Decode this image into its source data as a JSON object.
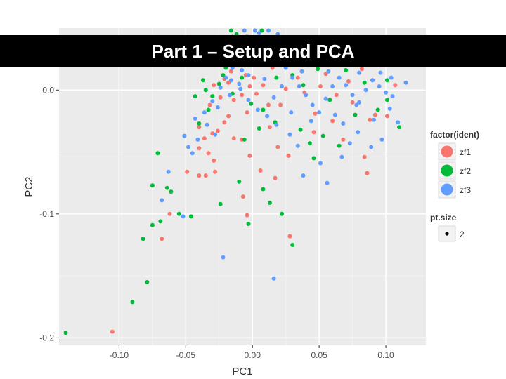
{
  "slide": {
    "title": "Part 1 – Setup and PCA"
  },
  "chart_data": {
    "type": "scatter",
    "xlabel": "PC1",
    "ylabel": "PC2",
    "xlim": [
      -0.145,
      0.13
    ],
    "ylim": [
      -0.206,
      0.05
    ],
    "x_ticks": [
      -0.1,
      -0.05,
      0.0,
      0.05,
      0.1
    ],
    "x_tick_labels": [
      "-0.10",
      "-0.05",
      "0.00",
      "0.05",
      "0.10"
    ],
    "y_ticks": [
      -0.2,
      -0.1,
      0.0
    ],
    "y_tick_labels": [
      "-0.2",
      "-0.1",
      "0.0"
    ],
    "grid": true,
    "legend": {
      "title": "factor(ident)",
      "placement": "right",
      "size_title": "pt.size",
      "size_label": "2"
    },
    "series": [
      {
        "name": "zf1",
        "color": "#F8766D",
        "points": [
          [
            -0.105,
            -0.195
          ],
          [
            -0.068,
            -0.12
          ],
          [
            -0.062,
            -0.1
          ],
          [
            -0.049,
            -0.066
          ],
          [
            -0.04,
            -0.069
          ],
          [
            -0.035,
            -0.069
          ],
          [
            -0.028,
            -0.066
          ],
          [
            -0.029,
            -0.057
          ],
          [
            -0.033,
            -0.051
          ],
          [
            -0.04,
            -0.047
          ],
          [
            -0.036,
            -0.039
          ],
          [
            -0.03,
            -0.035
          ],
          [
            -0.026,
            -0.033
          ],
          [
            -0.021,
            -0.026
          ],
          [
            -0.018,
            -0.021
          ],
          [
            -0.014,
            -0.039
          ],
          [
            -0.008,
            -0.04
          ],
          [
            -0.002,
            -0.053
          ],
          [
            0.006,
            -0.065
          ],
          [
            -0.007,
            -0.086
          ],
          [
            -0.004,
            -0.101
          ],
          [
            0.017,
            -0.071
          ],
          [
            0.027,
            -0.053
          ],
          [
            0.019,
            -0.046
          ],
          [
            0.013,
            -0.03
          ],
          [
            0.028,
            -0.118
          ],
          [
            0.046,
            -0.034
          ],
          [
            0.068,
            -0.04
          ],
          [
            0.084,
            -0.054
          ],
          [
            0.086,
            -0.067
          ],
          [
            0.088,
            -0.024
          ],
          [
            0.092,
            -0.02
          ],
          [
            0.101,
            -0.021
          ],
          [
            0.107,
            0.004
          ],
          [
            0.09,
            0.008
          ],
          [
            0.082,
            0.017
          ],
          [
            0.072,
            0.007
          ],
          [
            0.063,
            -0.004
          ],
          [
            0.055,
            0.013
          ],
          [
            0.047,
            -0.019
          ],
          [
            0.034,
            0.01
          ],
          [
            0.025,
            0.001
          ],
          [
            0.012,
            -0.012
          ],
          [
            0.003,
            -0.003
          ],
          [
            -0.005,
            0.012
          ],
          [
            -0.012,
            0.02
          ],
          [
            -0.018,
            0.006
          ],
          [
            -0.024,
            -0.006
          ],
          [
            -0.032,
            -0.012
          ],
          [
            -0.04,
            -0.03
          ],
          [
            -0.019,
            0.03
          ],
          [
            -0.01,
            0.038
          ],
          [
            -0.003,
            0.022
          ],
          [
            0.006,
            0.033
          ],
          [
            -0.026,
            0.021
          ],
          [
            -0.014,
            -0.008
          ],
          [
            -0.008,
            -0.004
          ],
          [
            0.001,
            0.01
          ],
          [
            0.008,
            0.004
          ],
          [
            -0.021,
            0.009
          ],
          [
            -0.016,
            0.015
          ],
          [
            -0.029,
            0.004
          ],
          [
            -0.004,
            -0.018
          ],
          [
            0.015,
            0.018
          ],
          [
            0.021,
            -0.012
          ],
          [
            0.039,
            -0.002
          ],
          [
            0.051,
            0.003
          ],
          [
            0.06,
            -0.025
          ],
          [
            0.075,
            -0.01
          ],
          [
            -0.002,
            0.003
          ]
        ]
      },
      {
        "name": "zf2",
        "color": "#00BA38",
        "points": [
          [
            -0.14,
            -0.196
          ],
          [
            -0.09,
            -0.171
          ],
          [
            -0.079,
            -0.155
          ],
          [
            -0.082,
            -0.12
          ],
          [
            -0.075,
            -0.109
          ],
          [
            -0.069,
            -0.106
          ],
          [
            -0.075,
            -0.077
          ],
          [
            -0.071,
            -0.051
          ],
          [
            -0.064,
            -0.079
          ],
          [
            -0.061,
            -0.082
          ],
          [
            -0.055,
            -0.1
          ],
          [
            -0.046,
            -0.102
          ],
          [
            -0.024,
            -0.092
          ],
          [
            -0.003,
            -0.108
          ],
          [
            -0.01,
            -0.074
          ],
          [
            0.008,
            -0.08
          ],
          [
            0.013,
            -0.091
          ],
          [
            0.03,
            -0.125
          ],
          [
            0.022,
            -0.1
          ],
          [
            -0.04,
            -0.027
          ],
          [
            -0.033,
            -0.016
          ],
          [
            -0.03,
            -0.005
          ],
          [
            -0.025,
            0.005
          ],
          [
            -0.02,
            0.018
          ],
          [
            -0.028,
            0.026
          ],
          [
            -0.018,
            0.039
          ],
          [
            -0.014,
            0.03
          ],
          [
            -0.008,
            0.022
          ],
          [
            -0.003,
            0.036
          ],
          [
            0.004,
            0.027
          ],
          [
            0.011,
            0.02
          ],
          [
            0.02,
            0.029
          ],
          [
            0.03,
            0.012
          ],
          [
            0.038,
            0.004
          ],
          [
            0.049,
            0.017
          ],
          [
            0.058,
            -0.008
          ],
          [
            0.053,
            -0.037
          ],
          [
            0.065,
            -0.045
          ],
          [
            0.077,
            -0.02
          ],
          [
            0.094,
            -0.016
          ],
          [
            0.101,
            -0.008
          ],
          [
            0.11,
            -0.03
          ],
          [
            0.101,
            0.008
          ],
          [
            0.084,
            0.006
          ],
          [
            0.07,
            0.016
          ],
          [
            0.059,
            0.032
          ],
          [
            0.043,
            -0.043
          ],
          [
            0.046,
            -0.055
          ],
          [
            0.036,
            -0.032
          ],
          [
            0.017,
            -0.026
          ],
          [
            0.008,
            -0.016
          ],
          [
            -0.001,
            -0.011
          ],
          [
            -0.008,
            0.01
          ],
          [
            -0.015,
            -0.003
          ],
          [
            -0.022,
            0.012
          ],
          [
            -0.03,
            0.02
          ],
          [
            -0.037,
            0.008
          ],
          [
            -0.043,
            -0.005
          ],
          [
            -0.035,
            0.0
          ],
          [
            -0.012,
            0.045
          ],
          [
            -0.004,
            0.043
          ],
          [
            0.014,
            0.042
          ],
          [
            0.025,
            0.036
          ],
          [
            0.007,
            0.048
          ],
          [
            -0.016,
            0.048
          ],
          [
            0.018,
            0.01
          ],
          [
            -0.006,
            -0.04
          ],
          [
            0.005,
            -0.031
          ]
        ]
      },
      {
        "name": "zf3",
        "color": "#619CFF",
        "points": [
          [
            -0.068,
            -0.089
          ],
          [
            -0.063,
            -0.066
          ],
          [
            -0.052,
            -0.102
          ],
          [
            -0.022,
            -0.135
          ],
          [
            0.016,
            -0.152
          ],
          [
            -0.051,
            -0.037
          ],
          [
            -0.045,
            -0.051
          ],
          [
            -0.043,
            -0.023
          ],
          [
            -0.036,
            -0.018
          ],
          [
            -0.03,
            -0.009
          ],
          [
            -0.024,
            0.002
          ],
          [
            -0.02,
            0.01
          ],
          [
            -0.015,
            0.018
          ],
          [
            -0.01,
            0.026
          ],
          [
            -0.005,
            0.033
          ],
          [
            0.0,
            0.04
          ],
          [
            0.005,
            0.046
          ],
          [
            0.01,
            0.036
          ],
          [
            0.015,
            0.03
          ],
          [
            0.02,
            0.024
          ],
          [
            0.025,
            0.018
          ],
          [
            0.03,
            0.01
          ],
          [
            0.035,
            0.003
          ],
          [
            0.04,
            -0.004
          ],
          [
            0.045,
            -0.012
          ],
          [
            0.05,
            -0.018
          ],
          [
            0.055,
            -0.007
          ],
          [
            0.06,
            0.003
          ],
          [
            0.065,
            0.01
          ],
          [
            0.07,
            0.004
          ],
          [
            0.075,
            -0.004
          ],
          [
            0.08,
            -0.01
          ],
          [
            0.085,
            0.0
          ],
          [
            0.09,
            0.008
          ],
          [
            0.095,
            0.003
          ],
          [
            0.1,
            -0.002
          ],
          [
            0.105,
            -0.005
          ],
          [
            0.109,
            -0.026
          ],
          [
            0.115,
            0.006
          ],
          [
            0.096,
            0.014
          ],
          [
            0.088,
            0.02
          ],
          [
            0.08,
            0.014
          ],
          [
            0.073,
            0.022
          ],
          [
            0.064,
            0.026
          ],
          [
            0.057,
            0.015
          ],
          [
            0.041,
            0.023
          ],
          [
            0.033,
            0.033
          ],
          [
            0.027,
            0.04
          ],
          [
            0.019,
            0.045
          ],
          [
            0.012,
            0.048
          ],
          [
            0.002,
            0.048
          ],
          [
            -0.006,
            0.048
          ],
          [
            -0.012,
            0.041
          ],
          [
            -0.018,
            0.035
          ],
          [
            -0.021,
            0.025
          ],
          [
            -0.016,
            0.008
          ],
          [
            -0.009,
            0.001
          ],
          [
            -0.003,
            -0.008
          ],
          [
            0.004,
            -0.016
          ],
          [
            0.011,
            -0.021
          ],
          [
            0.018,
            -0.028
          ],
          [
            0.028,
            -0.036
          ],
          [
            0.034,
            -0.045
          ],
          [
            0.038,
            -0.069
          ],
          [
            0.051,
            -0.059
          ],
          [
            0.056,
            -0.075
          ],
          [
            0.067,
            -0.054
          ],
          [
            0.073,
            -0.043
          ],
          [
            0.079,
            -0.034
          ],
          [
            0.089,
            -0.046
          ],
          [
            0.097,
            -0.04
          ],
          [
            0.103,
            -0.015
          ],
          [
            0.091,
            -0.024
          ],
          [
            0.078,
            -0.012
          ],
          [
            0.062,
            -0.02
          ],
          [
            0.044,
            -0.025
          ],
          [
            0.029,
            -0.018
          ],
          [
            0.016,
            -0.006
          ],
          [
            0.009,
            0.009
          ],
          [
            0.003,
            0.02
          ],
          [
            -0.003,
            0.012
          ],
          [
            -0.01,
            0.005
          ],
          [
            -0.017,
            -0.004
          ],
          [
            -0.026,
            -0.014
          ],
          [
            -0.034,
            -0.028
          ],
          [
            -0.041,
            -0.04
          ],
          [
            -0.048,
            -0.046
          ],
          [
            -0.028,
            -0.036
          ],
          [
            -0.015,
            0.043
          ],
          [
            0.007,
            0.027
          ],
          [
            -0.008,
            0.016
          ],
          [
            0.001,
            0.029
          ],
          [
            -0.013,
            0.031
          ],
          [
            0.022,
            0.003
          ],
          [
            0.037,
            0.015
          ],
          [
            0.047,
            0.03
          ],
          [
            0.085,
            0.03
          ],
          [
            0.104,
            0.01
          ],
          [
            0.068,
            -0.027
          ],
          [
            0.014,
            0.039
          ]
        ]
      }
    ]
  }
}
